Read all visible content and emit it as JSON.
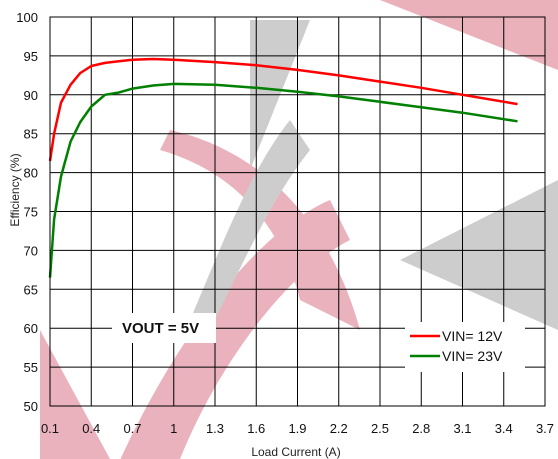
{
  "chart_data": {
    "type": "line",
    "xlabel": "Load Current (A)",
    "ylabel": "Efficiency (%)",
    "xlim": [
      0.1,
      3.7
    ],
    "ylim": [
      50,
      100
    ],
    "xticks": [
      "0.1",
      "0.4",
      "0.7",
      "1",
      "1.3",
      "1.6",
      "1.9",
      "2.2",
      "2.5",
      "2.8",
      "3.1",
      "3.4",
      "3.7"
    ],
    "yticks": [
      "50",
      "55",
      "60",
      "65",
      "70",
      "75",
      "80",
      "85",
      "90",
      "95",
      "100"
    ],
    "grid": true,
    "legend_position": "bottom-right",
    "annotation": "VOUT = 5V",
    "series": [
      {
        "name": "VIN= 12V",
        "color": "#ff0000",
        "points": [
          [
            0.1,
            81.5
          ],
          [
            0.13,
            85
          ],
          [
            0.18,
            89
          ],
          [
            0.25,
            91.3
          ],
          [
            0.32,
            92.8
          ],
          [
            0.4,
            93.7
          ],
          [
            0.5,
            94.1
          ],
          [
            0.6,
            94.3
          ],
          [
            0.7,
            94.5
          ],
          [
            0.85,
            94.6
          ],
          [
            1.0,
            94.5
          ],
          [
            1.3,
            94.2
          ],
          [
            1.6,
            93.8
          ],
          [
            1.9,
            93.2
          ],
          [
            2.2,
            92.5
          ],
          [
            2.5,
            91.7
          ],
          [
            2.8,
            90.9
          ],
          [
            3.1,
            90.0
          ],
          [
            3.5,
            88.8
          ]
        ]
      },
      {
        "name": "VIN= 23V",
        "color": "#008000",
        "points": [
          [
            0.1,
            66.5
          ],
          [
            0.13,
            74
          ],
          [
            0.18,
            79.5
          ],
          [
            0.25,
            84
          ],
          [
            0.32,
            86.5
          ],
          [
            0.4,
            88.5
          ],
          [
            0.5,
            90.0
          ],
          [
            0.6,
            90.3
          ],
          [
            0.7,
            90.8
          ],
          [
            0.85,
            91.2
          ],
          [
            1.0,
            91.4
          ],
          [
            1.3,
            91.3
          ],
          [
            1.6,
            90.9
          ],
          [
            1.9,
            90.4
          ],
          [
            2.2,
            89.8
          ],
          [
            2.5,
            89.1
          ],
          [
            2.8,
            88.4
          ],
          [
            3.1,
            87.7
          ],
          [
            3.5,
            86.6
          ]
        ]
      }
    ]
  }
}
